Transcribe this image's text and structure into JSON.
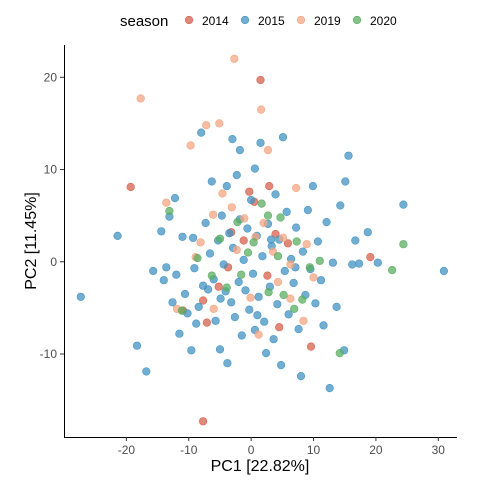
{
  "chart_data": {
    "type": "scatter",
    "xlabel": "PC1 [22.82%]",
    "ylabel": "PC2 [11.45%]",
    "xlim": [
      -30,
      33
    ],
    "ylim": [
      -19,
      23.5
    ],
    "x_ticks": [
      -20,
      -10,
      0,
      10,
      20,
      30
    ],
    "x_tick_labels": [
      "-20",
      "-10",
      "0",
      "10",
      "20",
      "30"
    ],
    "y_ticks": [
      -10,
      0,
      10,
      20
    ],
    "y_tick_labels": [
      "-10",
      "0",
      "10",
      "20"
    ],
    "grid": false,
    "legend": {
      "title": "season",
      "position": "top"
    },
    "series": [
      {
        "name": "2014",
        "color": "#D6604D",
        "points": [
          [
            -19.3,
            8.1
          ],
          [
            1.5,
            19.7
          ],
          [
            -7.7,
            -17.3
          ],
          [
            2.9,
            8.2
          ],
          [
            0.5,
            6.5
          ],
          [
            19.1,
            0.5
          ],
          [
            -10.9,
            -5.3
          ],
          [
            -7.1,
            -6.6
          ],
          [
            -3.2,
            3.2
          ],
          [
            -1.2,
            2.3
          ],
          [
            4.5,
            -7.1
          ],
          [
            9.6,
            -9.2
          ],
          [
            5.9,
            2.0
          ],
          [
            -7.7,
            -4.2
          ],
          [
            2.6,
            -1.5
          ],
          [
            -5.2,
            -2.7
          ],
          [
            -0.3,
            7.6
          ],
          [
            3.9,
            3.0
          ],
          [
            -3.7,
            -0.6
          ]
        ]
      },
      {
        "name": "2015",
        "color": "#4393C3",
        "points": [
          [
            -27.3,
            -3.8
          ],
          [
            -21.4,
            2.8
          ],
          [
            -18.3,
            -9.1
          ],
          [
            -16.8,
            -11.9
          ],
          [
            -15.7,
            -1.0
          ],
          [
            -14.4,
            3.3
          ],
          [
            -14.0,
            -2.0
          ],
          [
            -13.6,
            -0.6
          ],
          [
            -13.1,
            4.9
          ],
          [
            -12.6,
            -4.4
          ],
          [
            -12.2,
            6.9
          ],
          [
            -12.0,
            -1.4
          ],
          [
            -11.5,
            -7.8
          ],
          [
            -11.0,
            2.7
          ],
          [
            -10.6,
            -3.5
          ],
          [
            -10.2,
            -5.6
          ],
          [
            -9.6,
            -9.6
          ],
          [
            -9.3,
            2.6
          ],
          [
            -9.1,
            -0.7
          ],
          [
            -8.8,
            -6.7
          ],
          [
            -8.4,
            -4.9
          ],
          [
            -8.0,
            14.0
          ],
          [
            -7.7,
            -2.6
          ],
          [
            -7.3,
            4.2
          ],
          [
            -6.9,
            -3.0
          ],
          [
            -6.6,
            0.9
          ],
          [
            -6.3,
            8.7
          ],
          [
            -6.0,
            -1.9
          ],
          [
            -5.7,
            -6.4
          ],
          [
            -5.3,
            2.3
          ],
          [
            -5.0,
            -9.5
          ],
          [
            -4.7,
            5.0
          ],
          [
            -4.4,
            -0.3
          ],
          [
            -4.1,
            -3.2
          ],
          [
            -3.8,
            -11.0
          ],
          [
            -3.5,
            3.1
          ],
          [
            -3.2,
            -4.4
          ],
          [
            -2.9,
            1.5
          ],
          [
            -2.6,
            -6.0
          ],
          [
            -2.3,
            9.4
          ],
          [
            -2.0,
            -2.2
          ],
          [
            -1.8,
            4.6
          ],
          [
            -1.5,
            -8.0
          ],
          [
            -1.2,
            0.2
          ],
          [
            -0.9,
            -3.1
          ],
          [
            -0.6,
            3.6
          ],
          [
            -0.3,
            -5.2
          ],
          [
            0.0,
            6.7
          ],
          [
            0.3,
            -1.3
          ],
          [
            0.6,
            -7.4
          ],
          [
            0.9,
            2.8
          ],
          [
            1.2,
            -3.8
          ],
          [
            1.5,
            12.9
          ],
          [
            1.8,
            0.6
          ],
          [
            2.1,
            -6.5
          ],
          [
            2.4,
            -9.9
          ],
          [
            2.7,
            4.1
          ],
          [
            3.0,
            -2.7
          ],
          [
            3.3,
            1.7
          ],
          [
            3.6,
            -8.4
          ],
          [
            3.9,
            7.3
          ],
          [
            4.2,
            -4.6
          ],
          [
            4.5,
            2.4
          ],
          [
            4.8,
            -11.2
          ],
          [
            5.1,
            13.5
          ],
          [
            5.4,
            -1.0
          ],
          [
            5.7,
            5.4
          ],
          [
            6.0,
            -5.7
          ],
          [
            6.4,
            0.3
          ],
          [
            6.8,
            -2.3
          ],
          [
            7.2,
            3.7
          ],
          [
            7.6,
            -7.3
          ],
          [
            8.0,
            -12.4
          ],
          [
            8.3,
            1.1
          ],
          [
            8.7,
            -3.6
          ],
          [
            9.1,
            5.6
          ],
          [
            9.5,
            -0.8
          ],
          [
            9.9,
            8.2
          ],
          [
            10.3,
            -4.5
          ],
          [
            10.7,
            2.2
          ],
          [
            11.2,
            -2.0
          ],
          [
            11.6,
            -6.9
          ],
          [
            12.1,
            4.3
          ],
          [
            12.6,
            -13.7
          ],
          [
            13.1,
            -0.1
          ],
          [
            13.7,
            -4.9
          ],
          [
            14.3,
            6.1
          ],
          [
            14.9,
            -9.6
          ],
          [
            15.1,
            8.7
          ],
          [
            15.6,
            11.5
          ],
          [
            16.2,
            -0.3
          ],
          [
            16.7,
            2.3
          ],
          [
            17.3,
            -0.2
          ],
          [
            18.7,
            3.2
          ],
          [
            20.3,
            -0.1
          ],
          [
            24.4,
            6.2
          ],
          [
            30.9,
            -1.0
          ],
          [
            -4.9,
            -4.0
          ],
          [
            1.0,
            -5.8
          ],
          [
            -3.9,
            8.2
          ],
          [
            -3.0,
            13.3
          ],
          [
            -1.8,
            12.1
          ],
          [
            0.6,
            10.1
          ],
          [
            3.2,
            2.4
          ],
          [
            7.1,
            -0.6
          ]
        ]
      },
      {
        "name": "2019",
        "color": "#F4A582",
        "points": [
          [
            -17.7,
            17.7
          ],
          [
            -2.7,
            22.0
          ],
          [
            -7.2,
            14.8
          ],
          [
            1.6,
            16.5
          ],
          [
            -5.1,
            15.0
          ],
          [
            -9.7,
            12.6
          ],
          [
            -3.1,
            5.9
          ],
          [
            -4.6,
            7.4
          ],
          [
            -6.1,
            5.1
          ],
          [
            -1.1,
            4.7
          ],
          [
            -8.1,
            2.1
          ],
          [
            0.7,
            2.7
          ],
          [
            2.0,
            4.2
          ],
          [
            3.5,
            1.1
          ],
          [
            5.1,
            2.6
          ],
          [
            6.3,
            -0.3
          ],
          [
            7.2,
            8.0
          ],
          [
            8.9,
            1.9
          ],
          [
            10.0,
            -1.7
          ],
          [
            -13.6,
            6.4
          ],
          [
            -11.9,
            -5.1
          ],
          [
            -0.1,
            -3.9
          ],
          [
            1.2,
            -7.9
          ],
          [
            6.3,
            -4.0
          ],
          [
            8.4,
            -6.4
          ],
          [
            -2.3,
            1.3
          ],
          [
            -6.0,
            -5.1
          ],
          [
            4.3,
            -2.2
          ],
          [
            -8.9,
            0.5
          ],
          [
            2.7,
            12.1
          ]
        ]
      },
      {
        "name": "2020",
        "color": "#5AAE61",
        "points": [
          [
            24.4,
            1.9
          ],
          [
            22.6,
            -0.9
          ],
          [
            14.2,
            -9.9
          ],
          [
            -13.1,
            5.5
          ],
          [
            -8.6,
            0.4
          ],
          [
            -5.0,
            2.5
          ],
          [
            -2.2,
            4.3
          ],
          [
            0.4,
            2.1
          ],
          [
            2.7,
            5.0
          ],
          [
            4.3,
            0.6
          ],
          [
            7.3,
            2.2
          ],
          [
            9.4,
            -0.6
          ],
          [
            -11.1,
            -5.3
          ],
          [
            -3.9,
            -2.8
          ],
          [
            2.8,
            -3.3
          ],
          [
            5.2,
            -3.6
          ],
          [
            8.2,
            -4.1
          ],
          [
            -0.5,
            1.0
          ],
          [
            -1.6,
            -1.4
          ],
          [
            4.7,
            4.8
          ],
          [
            1.7,
            6.3
          ],
          [
            -6.3,
            -1.5
          ],
          [
            6.9,
            -5.1
          ],
          [
            11.0,
            0.1
          ]
        ]
      }
    ]
  }
}
